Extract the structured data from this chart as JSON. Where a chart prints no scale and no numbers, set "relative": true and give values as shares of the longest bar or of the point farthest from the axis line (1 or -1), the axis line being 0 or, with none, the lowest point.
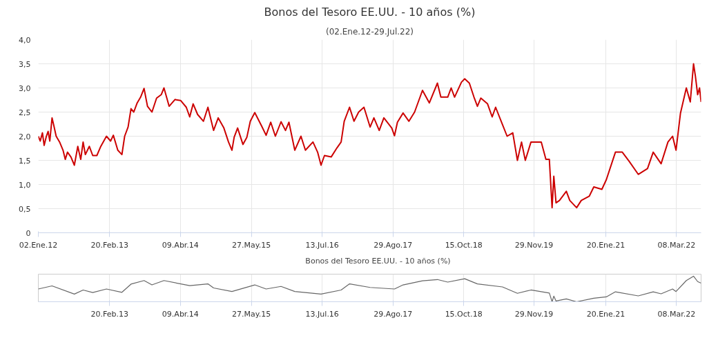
{
  "chart_data": [
    {
      "type": "line",
      "title": "Bonos del Tesoro EE.UU. - 10 años (%)",
      "subtitle": "(02.Ene.12-29.Jul.22)",
      "x": [
        "2012-01-02",
        "2012-01-13",
        "2012-01-26",
        "2012-02-05",
        "2012-02-18",
        "2012-02-28",
        "2012-03-09",
        "2012-03-22",
        "2012-04-02",
        "2012-04-15",
        "2012-05-05",
        "2012-05-25",
        "2012-06-07",
        "2012-06-20",
        "2012-07-10",
        "2012-07-30",
        "2012-08-19",
        "2012-09-05",
        "2012-09-19",
        "2012-10-02",
        "2012-10-25",
        "2012-11-14",
        "2012-12-08",
        "2012-12-31",
        "2013-02-02",
        "2013-02-26",
        "2013-03-14",
        "2013-04-09",
        "2013-05-03",
        "2013-05-19",
        "2013-06-08",
        "2013-06-25",
        "2013-07-11",
        "2013-07-31",
        "2013-08-20",
        "2013-09-09",
        "2013-09-29",
        "2013-10-25",
        "2013-11-21",
        "2013-12-18",
        "2014-01-03",
        "2014-02-02",
        "2014-03-08",
        "2014-04-10",
        "2014-05-13",
        "2014-06-02",
        "2014-06-22",
        "2014-07-18",
        "2014-08-21",
        "2014-09-16",
        "2014-10-19",
        "2014-11-15",
        "2014-12-18",
        "2015-01-14",
        "2015-02-03",
        "2015-02-16",
        "2015-03-08",
        "2015-04-08",
        "2015-05-01",
        "2015-05-21",
        "2015-06-16",
        "2015-07-26",
        "2015-08-21",
        "2015-09-17",
        "2015-10-14",
        "2015-11-16",
        "2015-12-12",
        "2016-01-01",
        "2016-02-04",
        "2016-03-11",
        "2016-04-06",
        "2016-05-20",
        "2016-06-16",
        "2016-07-06",
        "2016-07-26",
        "2016-09-03",
        "2016-10-07",
        "2016-10-31",
        "2016-11-18",
        "2016-12-19",
        "2017-01-14",
        "2017-02-10",
        "2017-03-13",
        "2017-04-18",
        "2017-05-10",
        "2017-06-10",
        "2017-07-07",
        "2017-08-22",
        "2017-09-07",
        "2017-09-24",
        "2017-10-27",
        "2017-11-30",
        "2018-01-02",
        "2018-02-17",
        "2018-03-29",
        "2018-05-15",
        "2018-06-04",
        "2018-07-14",
        "2018-08-03",
        "2018-08-23",
        "2018-10-02",
        "2018-10-21",
        "2018-11-17",
        "2018-12-14",
        "2019-01-03",
        "2019-01-23",
        "2019-03-03",
        "2019-03-30",
        "2019-04-19",
        "2019-05-29",
        "2019-06-25",
        "2019-07-28",
        "2019-08-24",
        "2019-09-17",
        "2019-10-09",
        "2019-11-11",
        "2020-01-10",
        "2020-02-06",
        "2020-02-26",
        "2020-03-13",
        "2020-03-23",
        "2020-04-05",
        "2020-04-25",
        "2020-06-04",
        "2020-06-24",
        "2020-08-03",
        "2020-08-30",
        "2020-10-16",
        "2020-11-11",
        "2020-12-28",
        "2021-01-23",
        "2021-03-17",
        "2021-04-26",
        "2021-06-05",
        "2021-07-28",
        "2021-09-20",
        "2021-10-23",
        "2021-12-08",
        "2022-01-17",
        "2022-02-13",
        "2022-03-05",
        "2022-03-31",
        "2022-05-04",
        "2022-05-27",
        "2022-06-15",
        "2022-06-26",
        "2022-07-09",
        "2022-07-20",
        "2022-07-29"
      ],
      "series": [
        {
          "name": "Bonos del Tesoro EE.UU. - 10 años (%)",
          "color": "#cc0000",
          "values": [
            2.0,
            1.9,
            2.07,
            1.81,
            2.0,
            2.1,
            1.9,
            2.38,
            2.21,
            2.0,
            1.88,
            1.71,
            1.52,
            1.67,
            1.57,
            1.4,
            1.79,
            1.52,
            1.88,
            1.62,
            1.79,
            1.6,
            1.6,
            1.79,
            2.0,
            1.9,
            2.02,
            1.71,
            1.62,
            2.0,
            2.19,
            2.57,
            2.5,
            2.69,
            2.81,
            2.99,
            2.62,
            2.5,
            2.79,
            2.86,
            3.0,
            2.62,
            2.76,
            2.74,
            2.6,
            2.4,
            2.67,
            2.45,
            2.31,
            2.6,
            2.12,
            2.38,
            2.17,
            1.88,
            1.71,
            1.98,
            2.17,
            1.83,
            1.98,
            2.31,
            2.49,
            2.21,
            2.02,
            2.29,
            2.0,
            2.3,
            2.12,
            2.29,
            1.71,
            2.0,
            1.71,
            1.88,
            1.67,
            1.4,
            1.6,
            1.57,
            1.76,
            1.88,
            2.31,
            2.6,
            2.31,
            2.5,
            2.6,
            2.19,
            2.38,
            2.12,
            2.38,
            2.17,
            2.01,
            2.29,
            2.48,
            2.31,
            2.5,
            2.95,
            2.69,
            3.1,
            2.81,
            2.81,
            3.0,
            2.81,
            3.12,
            3.19,
            3.1,
            2.81,
            2.62,
            2.79,
            2.67,
            2.4,
            2.6,
            2.24,
            2.0,
            2.07,
            1.5,
            1.88,
            1.5,
            1.88,
            1.88,
            1.52,
            1.52,
            0.52,
            1.17,
            0.62,
            0.67,
            0.86,
            0.67,
            0.52,
            0.67,
            0.76,
            0.95,
            0.9,
            1.1,
            1.67,
            1.67,
            1.48,
            1.21,
            1.33,
            1.67,
            1.43,
            1.88,
            2.0,
            1.71,
            2.48,
            3.0,
            2.71,
            3.5,
            3.24,
            2.86,
            3.0,
            2.71
          ]
        }
      ],
      "xlim": [
        "2012-01-02",
        "2022-07-29"
      ],
      "xticks": [
        {
          "value": "2012-01-02",
          "label": "02.Ene.12"
        },
        {
          "value": "2013-02-20",
          "label": "20.Feb.13"
        },
        {
          "value": "2014-04-09",
          "label": "09.Abr.14"
        },
        {
          "value": "2015-05-27",
          "label": "27.May.15"
        },
        {
          "value": "2016-07-13",
          "label": "13.Jul.16"
        },
        {
          "value": "2017-08-29",
          "label": "29.Ago.17"
        },
        {
          "value": "2018-10-15",
          "label": "15.Oct.18"
        },
        {
          "value": "2019-11-29",
          "label": "29.Nov.19"
        },
        {
          "value": "2021-01-20",
          "label": "20.Ene.21"
        },
        {
          "value": "2022-03-08",
          "label": "08.Mar.22"
        }
      ],
      "ylim": [
        0,
        4
      ],
      "yticks": [
        0,
        {
          "value": 0.5,
          "label": "0,5"
        },
        {
          "value": 1,
          "label": "1,0"
        },
        {
          "value": 1.5,
          "label": "1,5"
        },
        {
          "value": 2,
          "label": "2,0"
        },
        {
          "value": 2.5,
          "label": "2,5"
        },
        {
          "value": 3,
          "label": "3,0"
        },
        {
          "value": 3.5,
          "label": "3,5"
        },
        {
          "value": 4,
          "label": "4,0"
        }
      ],
      "grid": true,
      "legend": "bottom",
      "line_style": "solid"
    },
    {
      "type": "line",
      "relative": true,
      "x": [
        "2012-01-02",
        "2012-03-22",
        "2012-07-30",
        "2012-09-19",
        "2012-11-14",
        "2013-02-02",
        "2013-05-03",
        "2013-06-25",
        "2013-09-09",
        "2013-10-25",
        "2014-01-03",
        "2014-06-02",
        "2014-09-16",
        "2014-10-19",
        "2015-02-03",
        "2015-06-16",
        "2015-08-21",
        "2015-11-16",
        "2016-02-04",
        "2016-07-06",
        "2016-10-31",
        "2016-12-19",
        "2017-04-18",
        "2017-09-07",
        "2017-10-27",
        "2018-02-17",
        "2018-05-15",
        "2018-07-14",
        "2018-10-21",
        "2019-01-03",
        "2019-05-29",
        "2019-08-24",
        "2019-11-11",
        "2020-02-26",
        "2020-03-13",
        "2020-03-23",
        "2020-04-05",
        "2020-06-04",
        "2020-08-03",
        "2020-11-11",
        "2021-01-23",
        "2021-03-17",
        "2021-07-28",
        "2021-10-23",
        "2021-12-08",
        "2022-02-13",
        "2022-03-05",
        "2022-05-04",
        "2022-06-15",
        "2022-07-09",
        "2022-07-29"
      ],
      "series": [
        {
          "color": "#666666",
          "values": [
            0.5,
            0.62,
            0.3,
            0.46,
            0.36,
            0.5,
            0.37,
            0.69,
            0.83,
            0.66,
            0.83,
            0.63,
            0.7,
            0.54,
            0.4,
            0.66,
            0.5,
            0.6,
            0.4,
            0.3,
            0.46,
            0.7,
            0.56,
            0.5,
            0.66,
            0.82,
            0.87,
            0.77,
            0.9,
            0.7,
            0.58,
            0.33,
            0.46,
            0.34,
            0,
            0.22,
            0.03,
            0.11,
            0,
            0.14,
            0.19,
            0.39,
            0.23,
            0.39,
            0.31,
            0.5,
            0.4,
            0.83,
            1,
            0.79,
            0.73
          ]
        }
      ],
      "xlim": [
        "2012-01-02",
        "2022-07-29"
      ],
      "xticks": [
        {
          "value": "2013-02-20",
          "label": "20.Feb.13"
        },
        {
          "value": "2014-04-09",
          "label": "09.Abr.14"
        },
        {
          "value": "2015-05-27",
          "label": "27.May.15"
        },
        {
          "value": "2016-07-13",
          "label": "13.Jul.16"
        },
        {
          "value": "2017-08-29",
          "label": "29.Ago.17"
        },
        {
          "value": "2018-10-15",
          "label": "15.Oct.18"
        },
        {
          "value": "2019-11-29",
          "label": "29.Nov.19"
        },
        {
          "value": "2021-01-20",
          "label": "20.Ene.21"
        },
        {
          "value": "2022-03-08",
          "label": "08.Mar.22"
        }
      ],
      "grid": "x"
    }
  ]
}
